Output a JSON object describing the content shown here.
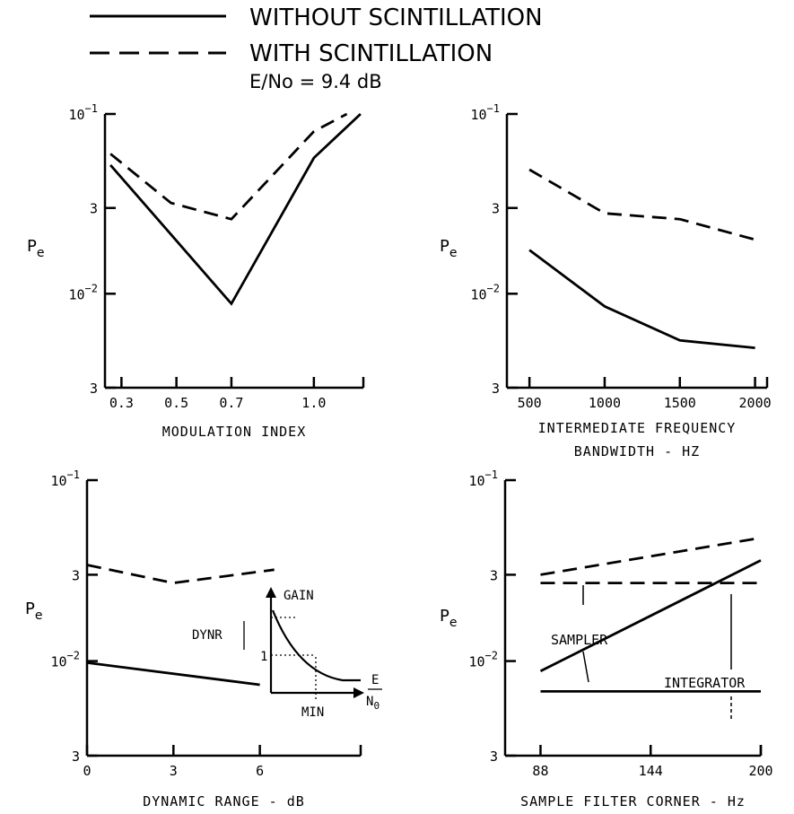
{
  "legend": {
    "solid_label": "WITHOUT SCINTILLATION",
    "dashed_label": "WITH SCINTILLATION",
    "condition": "E/No = 9.4 dB"
  },
  "chart_data": [
    {
      "type": "line",
      "id": "modulation",
      "xlabel_lines": [
        "MODULATION INDEX"
      ],
      "ylabel": "Pe",
      "yscale": "log",
      "ylim": [
        0.003,
        0.1
      ],
      "ytick_labels": [
        "10^-1",
        "3",
        "10^-2",
        "3"
      ],
      "xlim": [
        0.24,
        1.18
      ],
      "xticks": [
        0.3,
        0.5,
        0.7,
        1.0
      ],
      "xtick_labels": [
        "0.3",
        "0.5",
        "0.7",
        "1.0"
      ],
      "series": [
        {
          "style": "solid",
          "x": [
            0.26,
            0.7,
            1.0,
            1.17
          ],
          "y": [
            0.052,
            0.0088,
            0.057,
            0.1
          ]
        },
        {
          "style": "dashed",
          "x": [
            0.26,
            0.48,
            0.7,
            1.0,
            1.12
          ],
          "y": [
            0.06,
            0.032,
            0.026,
            0.08,
            0.1
          ]
        }
      ],
      "annotations": []
    },
    {
      "type": "line",
      "id": "if_bandwidth",
      "xlabel_lines": [
        "INTERMEDIATE FREQUENCY",
        "BANDWIDTH - HZ"
      ],
      "ylabel": "Pe",
      "yscale": "log",
      "ylim": [
        0.003,
        0.1
      ],
      "ytick_labels": [
        "10^-1",
        "3",
        "10^-2",
        "3"
      ],
      "xlim": [
        350,
        2080
      ],
      "xticks": [
        500,
        1000,
        1500,
        2000
      ],
      "xtick_labels": [
        "500",
        "1000",
        "1500",
        "2000"
      ],
      "series": [
        {
          "style": "solid",
          "x": [
            500,
            1000,
            1500,
            2000
          ],
          "y": [
            0.0175,
            0.0085,
            0.0055,
            0.005
          ]
        },
        {
          "style": "dashed",
          "x": [
            500,
            1000,
            1500,
            2000
          ],
          "y": [
            0.049,
            0.028,
            0.026,
            0.02
          ]
        }
      ],
      "annotations": []
    },
    {
      "type": "line",
      "id": "dynamic_range",
      "xlabel_lines": [
        "DYNAMIC RANGE - dB"
      ],
      "ylabel": "Pe",
      "yscale": "log",
      "ylim": [
        0.003,
        0.1
      ],
      "ytick_labels": [
        "10^-1",
        "3",
        "10^-2",
        "3"
      ],
      "xlim": [
        0,
        9.5
      ],
      "xticks": [
        0,
        3,
        6
      ],
      "xtick_labels": [
        "0",
        "3",
        "6"
      ],
      "series": [
        {
          "style": "solid",
          "x": [
            0,
            6
          ],
          "y": [
            0.0098,
            0.0074
          ]
        },
        {
          "style": "dashed",
          "x": [
            0,
            3,
            6.5
          ],
          "y": [
            0.034,
            0.027,
            0.032
          ]
        }
      ],
      "annotations": [],
      "inset": {
        "gain_label": "GAIN",
        "dynr_label": "DYNR",
        "one_label": "1",
        "min_label": "MIN",
        "e_label": "E",
        "no_label": "N0"
      }
    },
    {
      "type": "line",
      "id": "filter_corner",
      "xlabel_lines": [
        "SAMPLE FILTER CORNER - Hz"
      ],
      "ylabel": "Pe",
      "yscale": "log",
      "ylim": [
        0.003,
        0.1
      ],
      "ytick_labels": [
        "10^-1",
        "3",
        "10^-2",
        "3"
      ],
      "xlim": [
        70,
        200
      ],
      "xticks": [
        88,
        144,
        200
      ],
      "xtick_labels": [
        "88",
        "144",
        "200"
      ],
      "series": [
        {
          "style": "solid",
          "name": "SAMPLER",
          "x": [
            88,
            200
          ],
          "y": [
            0.0088,
            0.036
          ]
        },
        {
          "style": "dashed",
          "name": "SAMPLER",
          "x": [
            88,
            200
          ],
          "y": [
            0.03,
            0.048
          ]
        },
        {
          "style": "solid",
          "name": "INTEGRATOR",
          "x": [
            88,
            200
          ],
          "y": [
            0.0068,
            0.0068
          ]
        },
        {
          "style": "dashed",
          "name": "INTEGRATOR",
          "x": [
            88,
            200
          ],
          "y": [
            0.027,
            0.027
          ]
        }
      ],
      "annotations": [
        {
          "text": "SAMPLER"
        },
        {
          "text": "INTEGRATOR"
        }
      ]
    }
  ]
}
